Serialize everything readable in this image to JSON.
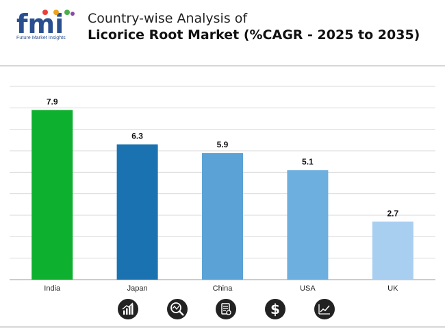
{
  "header": {
    "logo_text": "fmi",
    "logo_tagline": "Future Market Insights",
    "title_line1": "Country-wise Analysis of",
    "title_line2": "Licorice Root Market (%CAGR - 2025 to 2035)"
  },
  "colors": {
    "India": "#0db02f",
    "Japan": "#1a73b0",
    "China": "#5ba3d6",
    "USA": "#6db0e0",
    "UK": "#a9cff0",
    "grid": "#d9d9d9"
  },
  "chart_data": {
    "type": "bar",
    "title": "Country-wise Analysis of Licorice Root Market (%CAGR - 2025 to 2035)",
    "categories": [
      "India",
      "Japan",
      "China",
      "USA",
      "UK"
    ],
    "values": [
      7.9,
      6.3,
      5.9,
      5.1,
      2.7
    ],
    "data_labels": [
      "7.9",
      "6.3",
      "5.9",
      "5.1",
      "2.7"
    ],
    "xlabel": "",
    "ylabel": "",
    "ylim": [
      0,
      9
    ],
    "grid": true
  },
  "footer_icons": [
    "bar-chart-icon",
    "magnifier-chart-icon",
    "report-icon",
    "dollar-icon",
    "line-chart-icon"
  ]
}
